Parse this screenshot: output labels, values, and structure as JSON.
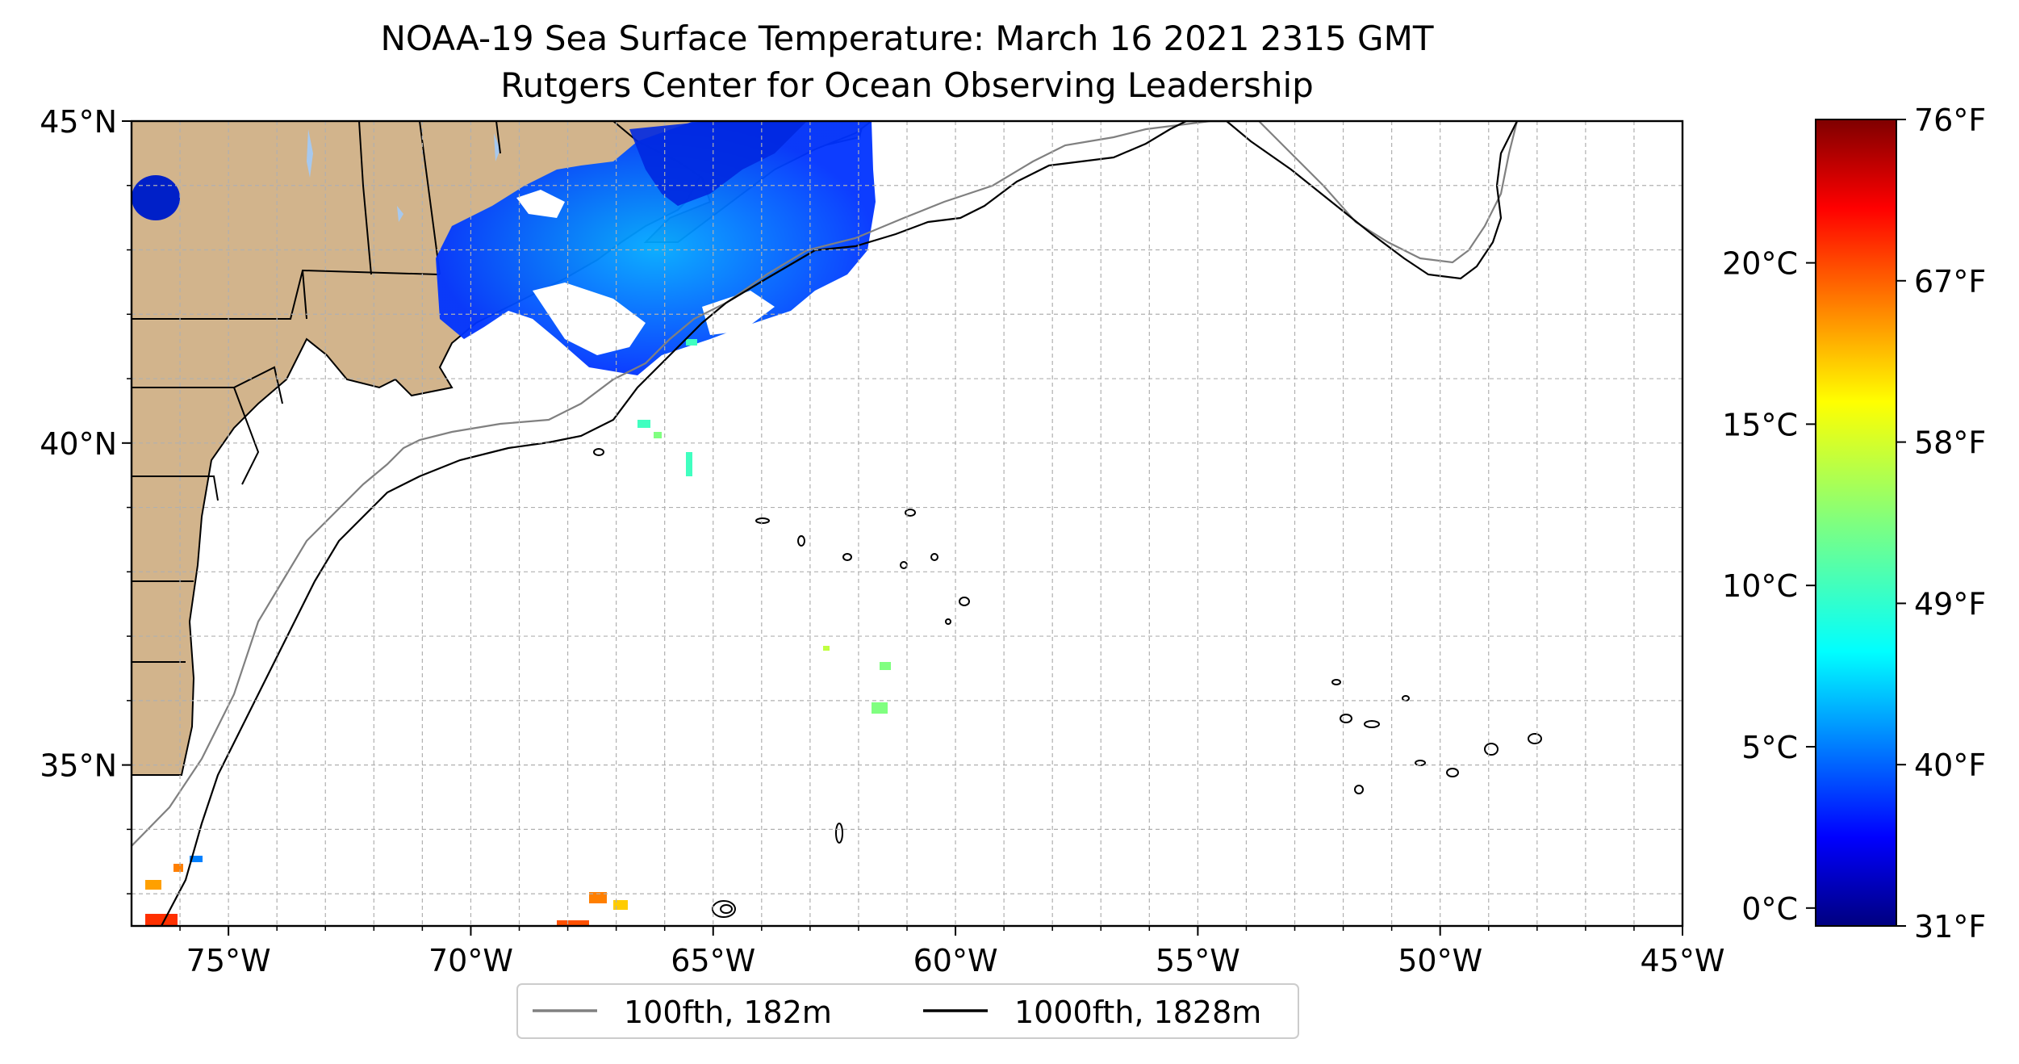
{
  "title": {
    "line1": "NOAA-19 Sea Surface Temperature: March 16 2021 2315 GMT",
    "line2": "Rutgers Center for Ocean Observing Leadership"
  },
  "map": {
    "lon_range": [
      -77,
      -45
    ],
    "lat_range": [
      32.5,
      45
    ],
    "lat_ticks": [
      {
        "value": 45,
        "label": "45°N"
      },
      {
        "value": 40,
        "label": "40°N"
      },
      {
        "value": 35,
        "label": "35°N"
      }
    ],
    "lon_ticks": [
      {
        "value": -75,
        "label": "75°W"
      },
      {
        "value": -70,
        "label": "70°W"
      },
      {
        "value": -65,
        "label": "65°W"
      },
      {
        "value": -60,
        "label": "60°W"
      },
      {
        "value": -55,
        "label": "55°W"
      },
      {
        "value": -50,
        "label": "50°W"
      },
      {
        "value": -45,
        "label": "45°W"
      }
    ],
    "grid": true,
    "land_color": "#d2b48c",
    "lake_color": "#a6c8ee",
    "isobaths": [
      {
        "label": "100fth, 182m",
        "color": "#808080"
      },
      {
        "label": "1000fth, 1828m",
        "color": "#000000"
      }
    ]
  },
  "colorbar": {
    "colormap": "jet",
    "celsius_ticks": [
      {
        "value": 0,
        "label": "0°C"
      },
      {
        "value": 5,
        "label": "5°C"
      },
      {
        "value": 10,
        "label": "10°C"
      },
      {
        "value": 15,
        "label": "15°C"
      },
      {
        "value": 20,
        "label": "20°C"
      }
    ],
    "fahrenheit_ticks": [
      {
        "value": 31,
        "label": "31°F"
      },
      {
        "value": 40,
        "label": "40°F"
      },
      {
        "value": 49,
        "label": "49°F"
      },
      {
        "value": 58,
        "label": "58°F"
      },
      {
        "value": 67,
        "label": "67°F"
      },
      {
        "value": 76,
        "label": "76°F"
      }
    ],
    "colors": [
      "#00007f",
      "#0000ff",
      "#007fff",
      "#00ffff",
      "#7fff7f",
      "#ffff00",
      "#ff7f00",
      "#ff0000",
      "#7f0000"
    ]
  },
  "legend": {
    "position": "lower center"
  }
}
